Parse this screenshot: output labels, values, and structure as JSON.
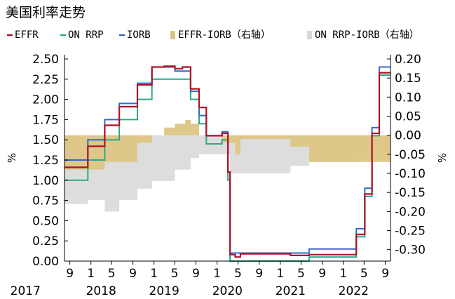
{
  "chart_data": {
    "type": "line",
    "title": "美国利率走势",
    "ylabel_left": "%",
    "ylabel_right": "%",
    "ylim_left": [
      0,
      2.5
    ],
    "ylim_right": [
      -0.33,
      0.2
    ],
    "yticks_left": [
      "0.00",
      "0.25",
      "0.50",
      "0.75",
      "1.00",
      "1.25",
      "1.50",
      "1.75",
      "2.00",
      "2.25",
      "2.50"
    ],
    "yticks_right": [
      "-0.30",
      "-0.25",
      "-0.20",
      "-0.15",
      "-0.10",
      "-0.05",
      "0.00",
      "0.05",
      "0.10",
      "0.15",
      "0.20"
    ],
    "x_month_ticks": [
      "9",
      "1",
      "5",
      "9",
      "1",
      "5",
      "9",
      "1",
      "5",
      "9",
      "1",
      "5",
      "9",
      "1",
      "5",
      "9"
    ],
    "x_year_labels": [
      "2017",
      "2018",
      "2019",
      "2020",
      "2021",
      "2022"
    ],
    "x_range": [
      "2017-08",
      "2022-10"
    ],
    "legend": [
      "EFFR",
      "ON RRP",
      "IORB",
      "EFFR-IORB（右轴）",
      "ON RRP-IORB（右轴）"
    ],
    "colors": {
      "EFFR": "#b01225",
      "ON RRP": "#2aa98b",
      "IORB": "#2f6bc4",
      "EFFR-IORB": "#dcc584",
      "ON RRP-IORB": "#d9d9d9"
    },
    "series": [
      {
        "name": "IORB",
        "axis": "left",
        "step": true,
        "points": [
          [
            "2017-08-01",
            1.25
          ],
          [
            "2017-12-14",
            1.5
          ],
          [
            "2018-03-22",
            1.75
          ],
          [
            "2018-06-14",
            1.95
          ],
          [
            "2018-09-27",
            2.2
          ],
          [
            "2018-12-20",
            2.4
          ],
          [
            "2019-05-02",
            2.35
          ],
          [
            "2019-08-01",
            2.1
          ],
          [
            "2019-09-19",
            1.8
          ],
          [
            "2019-10-31",
            1.55
          ],
          [
            "2020-01-30",
            1.6
          ],
          [
            "2020-03-04",
            1.1
          ],
          [
            "2020-03-16",
            0.1
          ],
          [
            "2021-06-17",
            0.15
          ],
          [
            "2022-03-17",
            0.4
          ],
          [
            "2022-05-05",
            0.9
          ],
          [
            "2022-06-16",
            1.65
          ],
          [
            "2022-07-28",
            2.4
          ],
          [
            "2022-09-30",
            2.4
          ]
        ]
      },
      {
        "name": "ON RRP",
        "axis": "left",
        "step": true,
        "points": [
          [
            "2017-08-01",
            1.0
          ],
          [
            "2017-12-14",
            1.25
          ],
          [
            "2018-03-22",
            1.5
          ],
          [
            "2018-06-14",
            1.75
          ],
          [
            "2018-09-27",
            2.0
          ],
          [
            "2018-12-20",
            2.25
          ],
          [
            "2019-08-01",
            2.0
          ],
          [
            "2019-09-19",
            1.7
          ],
          [
            "2019-10-31",
            1.45
          ],
          [
            "2020-01-30",
            1.5
          ],
          [
            "2020-03-04",
            1.0
          ],
          [
            "2020-03-16",
            0.0
          ],
          [
            "2021-06-17",
            0.05
          ],
          [
            "2022-03-17",
            0.3
          ],
          [
            "2022-05-05",
            0.8
          ],
          [
            "2022-06-16",
            1.55
          ],
          [
            "2022-07-28",
            2.3
          ],
          [
            "2022-09-30",
            2.3
          ]
        ]
      },
      {
        "name": "EFFR",
        "axis": "left",
        "step": true,
        "points": [
          [
            "2017-08-01",
            1.16
          ],
          [
            "2017-12-14",
            1.42
          ],
          [
            "2018-03-22",
            1.68
          ],
          [
            "2018-06-14",
            1.91
          ],
          [
            "2018-09-27",
            2.18
          ],
          [
            "2018-12-20",
            2.4
          ],
          [
            "2019-03-01",
            2.41
          ],
          [
            "2019-05-02",
            2.38
          ],
          [
            "2019-06-15",
            2.4
          ],
          [
            "2019-08-01",
            2.13
          ],
          [
            "2019-09-19",
            1.9
          ],
          [
            "2019-10-31",
            1.55
          ],
          [
            "2020-01-30",
            1.58
          ],
          [
            "2020-03-04",
            1.1
          ],
          [
            "2020-03-16",
            0.08
          ],
          [
            "2020-04-15",
            0.05
          ],
          [
            "2020-05-15",
            0.09
          ],
          [
            "2021-03-01",
            0.07
          ],
          [
            "2021-06-17",
            0.08
          ],
          [
            "2022-03-17",
            0.33
          ],
          [
            "2022-05-05",
            0.83
          ],
          [
            "2022-06-16",
            1.58
          ],
          [
            "2022-07-28",
            2.33
          ],
          [
            "2022-09-30",
            2.33
          ]
        ]
      },
      {
        "name": "EFFR-IORB（右轴）",
        "axis": "right",
        "type": "area",
        "points": [
          [
            "2017-08-01",
            -0.09
          ],
          [
            "2018-03-22",
            -0.07
          ],
          [
            "2018-09-27",
            -0.02
          ],
          [
            "2018-12-20",
            0.0
          ],
          [
            "2019-03-01",
            0.02
          ],
          [
            "2019-05-02",
            0.03
          ],
          [
            "2019-07-01",
            0.04
          ],
          [
            "2019-08-01",
            0.03
          ],
          [
            "2019-09-19",
            0.0
          ],
          [
            "2019-10-31",
            0.0
          ],
          [
            "2020-01-30",
            -0.02
          ],
          [
            "2020-03-16",
            -0.02
          ],
          [
            "2020-04-15",
            -0.05
          ],
          [
            "2020-05-15",
            -0.01
          ],
          [
            "2021-03-01",
            -0.03
          ],
          [
            "2021-06-17",
            -0.07
          ],
          [
            "2022-03-17",
            -0.07
          ],
          [
            "2022-05-05",
            -0.07
          ],
          [
            "2022-06-16",
            -0.07
          ],
          [
            "2022-07-28",
            -0.07
          ],
          [
            "2022-09-30",
            -0.07
          ]
        ]
      },
      {
        "name": "ON RRP-IORB（右轴）",
        "axis": "right",
        "type": "area",
        "points": [
          [
            "2017-08-01",
            -0.18
          ],
          [
            "2017-12-14",
            -0.17
          ],
          [
            "2018-03-22",
            -0.2
          ],
          [
            "2018-06-14",
            -0.17
          ],
          [
            "2018-09-27",
            -0.14
          ],
          [
            "2018-12-20",
            -0.12
          ],
          [
            "2019-05-02",
            -0.09
          ],
          [
            "2019-08-01",
            -0.06
          ],
          [
            "2019-09-19",
            -0.05
          ],
          [
            "2019-10-31",
            -0.05
          ],
          [
            "2020-01-30",
            -0.05
          ],
          [
            "2020-03-16",
            -0.1
          ],
          [
            "2020-06-15",
            -0.1
          ],
          [
            "2021-03-01",
            -0.08
          ],
          [
            "2021-06-17",
            -0.07
          ],
          [
            "2022-03-17",
            -0.05
          ],
          [
            "2022-06-16",
            -0.04
          ],
          [
            "2022-09-30",
            -0.03
          ]
        ]
      }
    ]
  }
}
